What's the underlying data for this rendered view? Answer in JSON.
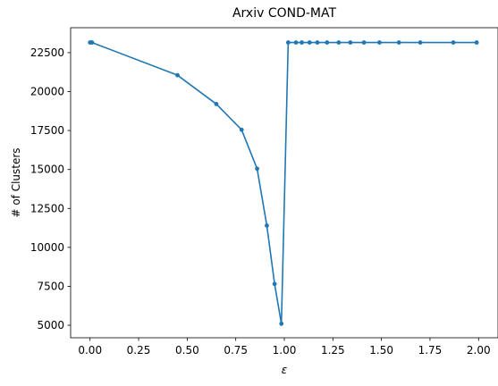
{
  "chart_data": {
    "type": "line",
    "title": "Arxiv COND-MAT",
    "xlabel": "ε",
    "ylabel": "# of Clusters",
    "xlim": [
      -0.1,
      2.1
    ],
    "ylim": [
      4200,
      24100
    ],
    "xticks": [
      0.0,
      0.25,
      0.5,
      0.75,
      1.0,
      1.25,
      1.5,
      1.75,
      2.0
    ],
    "xtick_labels": [
      "0.00",
      "0.25",
      "0.50",
      "0.75",
      "1.00",
      "1.25",
      "1.50",
      "1.75",
      "2.00"
    ],
    "yticks": [
      5000,
      7500,
      10000,
      12500,
      15000,
      17500,
      20000,
      22500
    ],
    "ytick_labels": [
      "5000",
      "7500",
      "10000",
      "12500",
      "15000",
      "17500",
      "20000",
      "22500"
    ],
    "grid": false,
    "legend": false,
    "series": [
      {
        "color": "#1f77b4",
        "marker": "circle",
        "x": [
          0.0,
          0.01,
          0.45,
          0.65,
          0.78,
          0.86,
          0.91,
          0.95,
          0.985,
          1.02,
          1.06,
          1.09,
          1.13,
          1.17,
          1.22,
          1.28,
          1.34,
          1.41,
          1.49,
          1.59,
          1.7,
          1.87,
          1.99
        ],
        "y": [
          23150,
          23150,
          21050,
          19200,
          17550,
          15050,
          11400,
          7650,
          5100,
          23150,
          23150,
          23150,
          23150,
          23150,
          23150,
          23150,
          23150,
          23150,
          23150,
          23150,
          23150,
          23150,
          23150
        ]
      }
    ]
  }
}
